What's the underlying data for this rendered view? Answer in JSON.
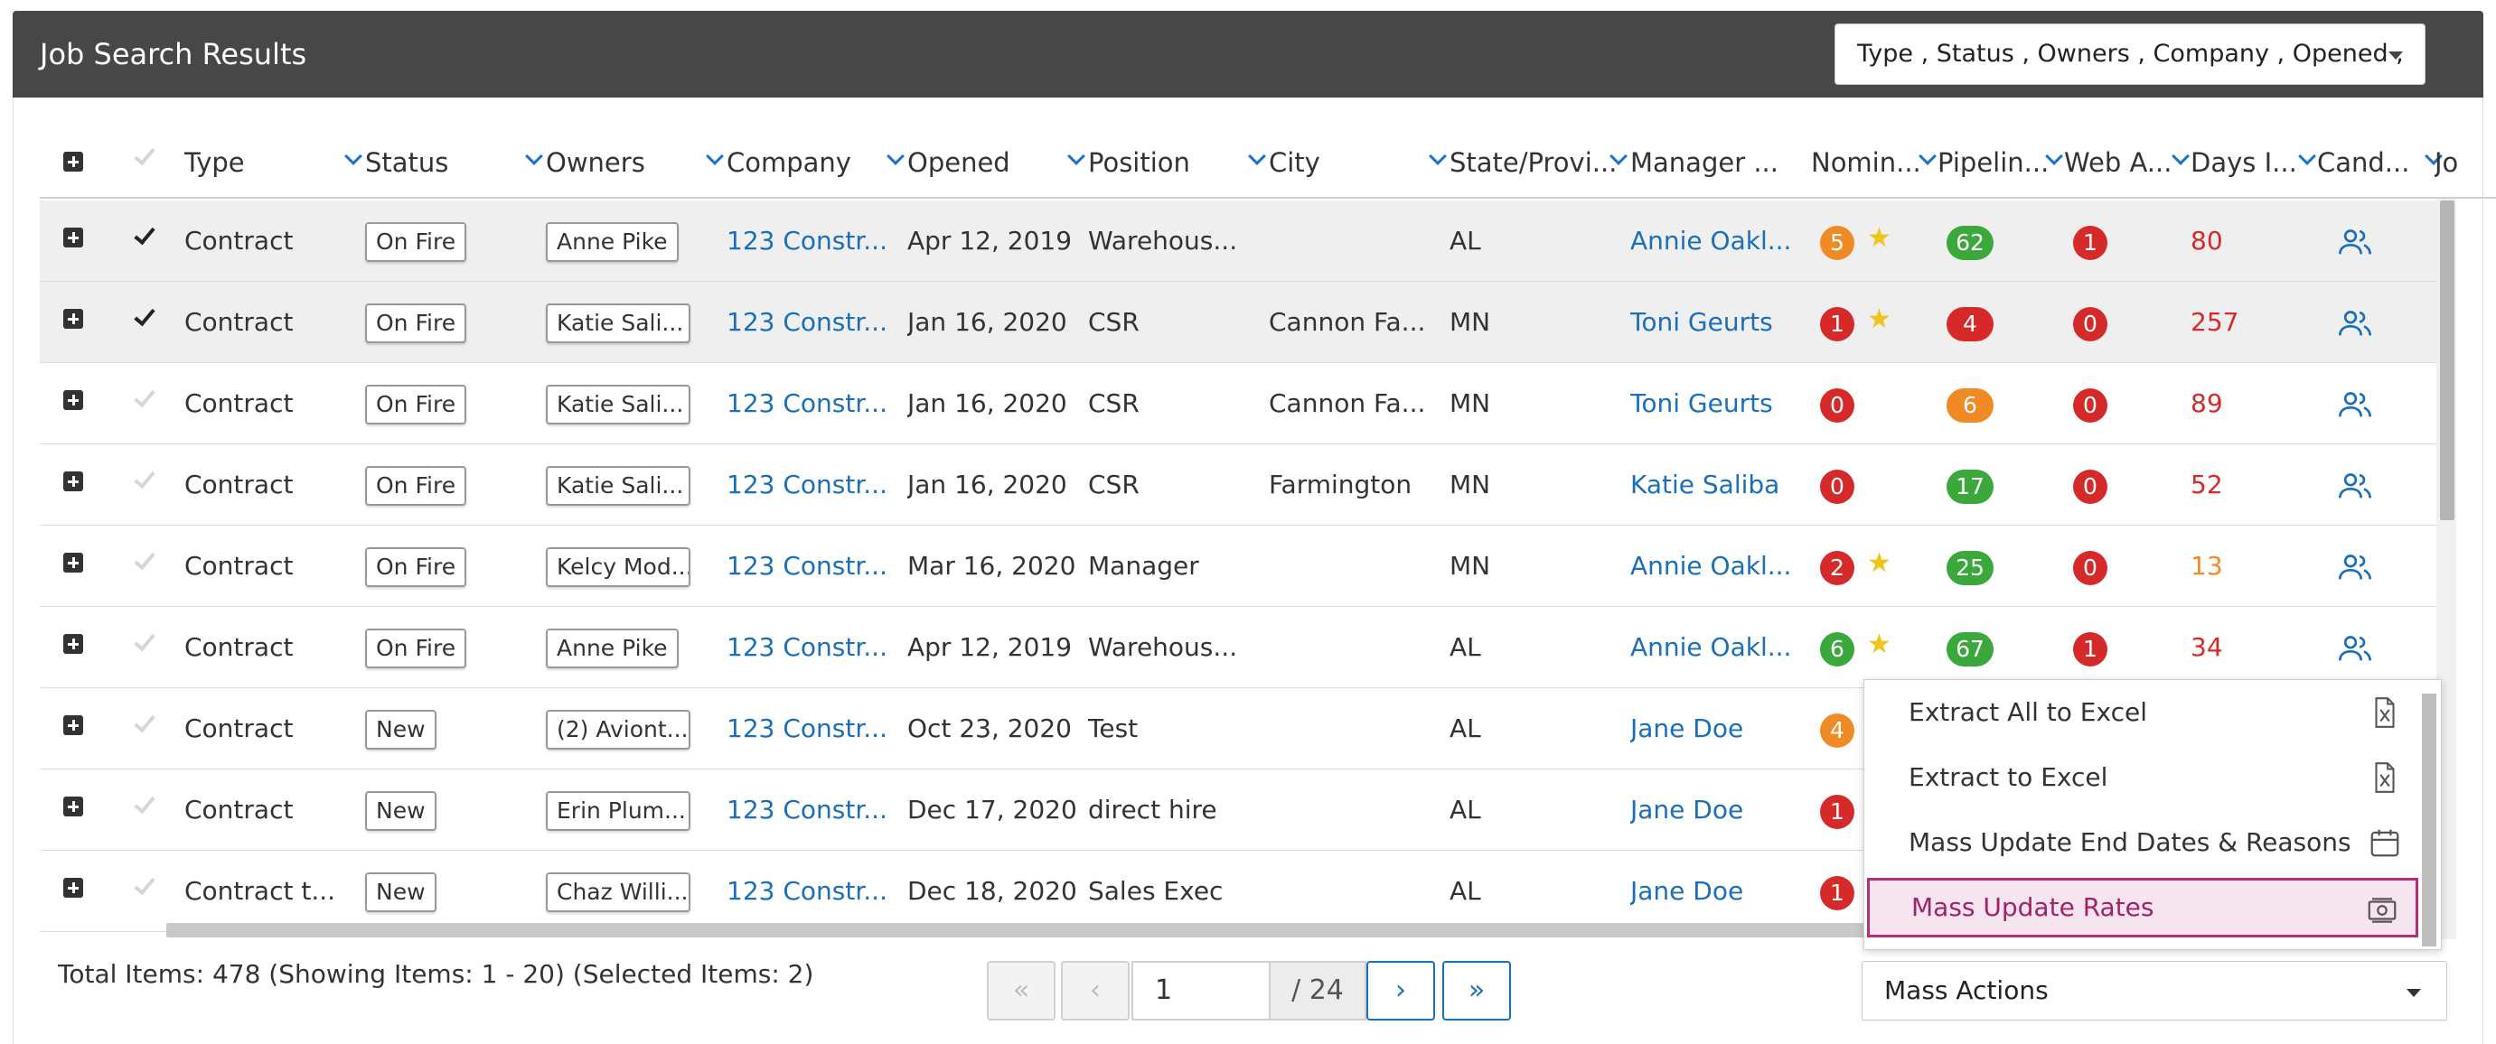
{
  "header": {
    "title": "Job Search Results",
    "columns_select": "Type , Status , Owners , Company , Opened ,"
  },
  "columns": [
    "Type",
    "Status",
    "Owners",
    "Company",
    "Opened",
    "Position",
    "City",
    "State/Provi...",
    "Manager ...",
    "Nomin...",
    "Pipelin...",
    "Web A...",
    "Days I...",
    "Cand...",
    "Jo"
  ],
  "rows": [
    {
      "selected": true,
      "type": "Contract",
      "status": "On Fire",
      "owner": "Anne Pike",
      "company": "123 Constr...",
      "opened": "Apr 12, 2019",
      "position": "Warehous...",
      "city": "",
      "state": "AL",
      "manager": "Annie Oakl...",
      "nom": "5",
      "nom_color": "orange",
      "nom_star": true,
      "pipe": "62",
      "pipe_color": "green",
      "web": "1",
      "days": "80",
      "days_color": "#d62a2a"
    },
    {
      "selected": true,
      "type": "Contract",
      "status": "On Fire",
      "owner": "Katie Sali...",
      "company": "123 Constr...",
      "opened": "Jan 16, 2020",
      "position": "CSR",
      "city": "Cannon Fa...",
      "state": "MN",
      "manager": "Toni Geurts",
      "nom": "1",
      "nom_color": "red",
      "nom_star": true,
      "pipe": "4",
      "pipe_color": "red",
      "web": "0",
      "days": "257",
      "days_color": "#d62a2a"
    },
    {
      "selected": false,
      "type": "Contract",
      "status": "On Fire",
      "owner": "Katie Sali...",
      "company": "123 Constr...",
      "opened": "Jan 16, 2020",
      "position": "CSR",
      "city": "Cannon Fa...",
      "state": "MN",
      "manager": "Toni Geurts",
      "nom": "0",
      "nom_color": "red",
      "nom_star": false,
      "pipe": "6",
      "pipe_color": "orange",
      "web": "0",
      "days": "89",
      "days_color": "#d62a2a"
    },
    {
      "selected": false,
      "type": "Contract",
      "status": "On Fire",
      "owner": "Katie Sali...",
      "company": "123 Constr...",
      "opened": "Jan 16, 2020",
      "position": "CSR",
      "city": "Farmington",
      "state": "MN",
      "manager": "Katie Saliba",
      "nom": "0",
      "nom_color": "red",
      "nom_star": false,
      "pipe": "17",
      "pipe_color": "green",
      "web": "0",
      "days": "52",
      "days_color": "#d62a2a"
    },
    {
      "selected": false,
      "type": "Contract",
      "status": "On Fire",
      "owner": "Kelcy Mod...",
      "company": "123 Constr...",
      "opened": "Mar 16, 2020",
      "position": "Manager",
      "city": "",
      "state": "MN",
      "manager": "Annie Oakl...",
      "nom": "2",
      "nom_color": "red",
      "nom_star": true,
      "pipe": "25",
      "pipe_color": "green",
      "web": "0",
      "days": "13",
      "days_color": "#f08a24"
    },
    {
      "selected": false,
      "type": "Contract",
      "status": "On Fire",
      "owner": "Anne Pike",
      "company": "123 Constr...",
      "opened": "Apr 12, 2019",
      "position": "Warehous...",
      "city": "",
      "state": "AL",
      "manager": "Annie Oakl...",
      "nom": "6",
      "nom_color": "green",
      "nom_star": true,
      "pipe": "67",
      "pipe_color": "green",
      "web": "1",
      "days": "34",
      "days_color": "#d62a2a"
    },
    {
      "selected": false,
      "type": "Contract",
      "status": "New",
      "owner": "(2) Aviont...",
      "company": "123 Constr...",
      "opened": "Oct 23, 2020",
      "position": "Test",
      "city": "",
      "state": "AL",
      "manager": "Jane Doe",
      "nom": "4",
      "nom_color": "orange"
    },
    {
      "selected": false,
      "type": "Contract",
      "status": "New",
      "owner": "Erin Plum...",
      "company": "123 Constr...",
      "opened": "Dec 17, 2020",
      "position": "direct hire",
      "city": "",
      "state": "AL",
      "manager": "Jane Doe",
      "nom": "1",
      "nom_color": "red"
    },
    {
      "selected": false,
      "type": "Contract t...",
      "status": "New",
      "owner": "Chaz Willi...",
      "company": "123 Constr...",
      "opened": "Dec 18, 2020",
      "position": "Sales Exec",
      "city": "",
      "state": "AL",
      "manager": "Jane Doe",
      "nom": "1",
      "nom_color": "red"
    }
  ],
  "menu": {
    "items": [
      "Extract All to Excel",
      "Extract to Excel",
      "Mass Update End Dates & Reasons",
      "Mass Update Rates"
    ],
    "active_index": 3
  },
  "footer": {
    "summary": "Total Items: 478 (Showing Items: 1 - 20) (Selected Items: 2)",
    "page": "1",
    "total_pages": "/ 24",
    "mass_actions": "Mass Actions"
  },
  "colors": {
    "header_bg": "#474747",
    "link": "#1a6fb8",
    "red": "#d62a2a",
    "orange": "#f08a24",
    "green": "#3aa83a",
    "menu_active": "#b0307a"
  }
}
